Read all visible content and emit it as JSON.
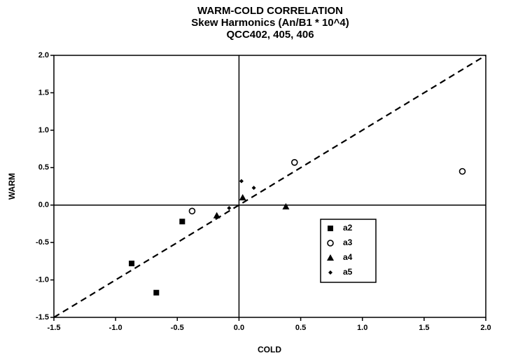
{
  "chart_data": {
    "type": "scatter",
    "title": "WARM-COLD CORRELATION",
    "subtitle": [
      "Skew Harmonics (An/B1 * 10^4)",
      "QCC402, 405, 406"
    ],
    "x_label": "COLD",
    "y_label": "WARM",
    "xlim": [
      -1.5,
      2.0
    ],
    "xticks": [
      -1.5,
      {
        "value": -1.0,
        "label": "-1.0"
      },
      -0.5,
      {
        "value": 0,
        "label": "0.0"
      },
      0.5,
      {
        "value": 1.0,
        "label": "1.0"
      },
      1.5,
      {
        "value": 2.0,
        "label": "2.0"
      }
    ],
    "ylim": [
      -1.5,
      2.0
    ],
    "yticks": [
      -1.5,
      {
        "value": -1.0,
        "label": "-1.0"
      },
      -0.5,
      {
        "value": 0,
        "label": "0.0"
      },
      0.5,
      {
        "value": 1.0,
        "label": "1.0"
      },
      1.5,
      {
        "value": 2.0,
        "label": "2.0"
      }
    ],
    "legend": "lower right",
    "series": [
      {
        "name": "a2",
        "color": "#000000",
        "marker": "square",
        "x": [
          -0.46,
          -0.87,
          -0.67
        ],
        "values": [
          -0.22,
          -0.78,
          -1.17
        ]
      },
      {
        "name": "a3",
        "color": "#000000",
        "marker": "circle",
        "x": [
          -0.38,
          0.45,
          1.81
        ],
        "values": [
          -0.08,
          0.57,
          0.45
        ]
      },
      {
        "name": "a4",
        "color": "#000000",
        "marker": "triangle",
        "x": [
          -0.18,
          0.03,
          0.38
        ],
        "values": [
          -0.14,
          0.1,
          -0.02
        ]
      },
      {
        "name": "a5",
        "color": "#000000",
        "marker": "diamond",
        "x": [
          0.02,
          0.12,
          -0.08
        ],
        "values": [
          0.32,
          0.23,
          -0.04
        ]
      }
    ]
  }
}
